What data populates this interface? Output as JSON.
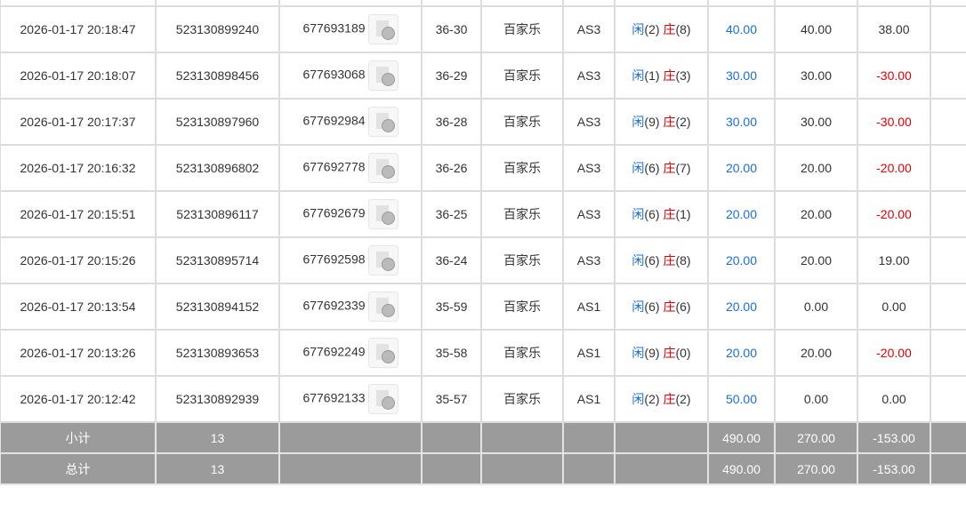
{
  "rows": [
    {
      "time": "2026-01-17 20:18:47",
      "bet_id": "523130899240",
      "game_id": "677693189",
      "round": "36-30",
      "game": "百家乐",
      "table": "AS3",
      "xian": "闲",
      "xian_n": "(2)",
      "zhuang": "庄",
      "zhuang_n": "(8)",
      "bet": "40.00",
      "valid": "40.00",
      "win": "38.00",
      "neg": false
    },
    {
      "time": "2026-01-17 20:18:07",
      "bet_id": "523130898456",
      "game_id": "677693068",
      "round": "36-29",
      "game": "百家乐",
      "table": "AS3",
      "xian": "闲",
      "xian_n": "(1)",
      "zhuang": "庄",
      "zhuang_n": "(3)",
      "bet": "30.00",
      "valid": "30.00",
      "win": "-30.00",
      "neg": true
    },
    {
      "time": "2026-01-17 20:17:37",
      "bet_id": "523130897960",
      "game_id": "677692984",
      "round": "36-28",
      "game": "百家乐",
      "table": "AS3",
      "xian": "闲",
      "xian_n": "(9)",
      "zhuang": "庄",
      "zhuang_n": "(2)",
      "bet": "30.00",
      "valid": "30.00",
      "win": "-30.00",
      "neg": true
    },
    {
      "time": "2026-01-17 20:16:32",
      "bet_id": "523130896802",
      "game_id": "677692778",
      "round": "36-26",
      "game": "百家乐",
      "table": "AS3",
      "xian": "闲",
      "xian_n": "(6)",
      "zhuang": "庄",
      "zhuang_n": "(7)",
      "bet": "20.00",
      "valid": "20.00",
      "win": "-20.00",
      "neg": true
    },
    {
      "time": "2026-01-17 20:15:51",
      "bet_id": "523130896117",
      "game_id": "677692679",
      "round": "36-25",
      "game": "百家乐",
      "table": "AS3",
      "xian": "闲",
      "xian_n": "(6)",
      "zhuang": "庄",
      "zhuang_n": "(1)",
      "bet": "20.00",
      "valid": "20.00",
      "win": "-20.00",
      "neg": true
    },
    {
      "time": "2026-01-17 20:15:26",
      "bet_id": "523130895714",
      "game_id": "677692598",
      "round": "36-24",
      "game": "百家乐",
      "table": "AS3",
      "xian": "闲",
      "xian_n": "(6)",
      "zhuang": "庄",
      "zhuang_n": "(8)",
      "bet": "20.00",
      "valid": "20.00",
      "win": "19.00",
      "neg": false
    },
    {
      "time": "2026-01-17 20:13:54",
      "bet_id": "523130894152",
      "game_id": "677692339",
      "round": "35-59",
      "game": "百家乐",
      "table": "AS1",
      "xian": "闲",
      "xian_n": "(6)",
      "zhuang": "庄",
      "zhuang_n": "(6)",
      "bet": "20.00",
      "valid": "0.00",
      "win": "0.00",
      "neg": false
    },
    {
      "time": "2026-01-17 20:13:26",
      "bet_id": "523130893653",
      "game_id": "677692249",
      "round": "35-58",
      "game": "百家乐",
      "table": "AS1",
      "xian": "闲",
      "xian_n": "(9)",
      "zhuang": "庄",
      "zhuang_n": "(0)",
      "bet": "20.00",
      "valid": "20.00",
      "win": "-20.00",
      "neg": true
    },
    {
      "time": "2026-01-17 20:12:42",
      "bet_id": "523130892939",
      "game_id": "677692133",
      "round": "35-57",
      "game": "百家乐",
      "table": "AS1",
      "xian": "闲",
      "xian_n": "(2)",
      "zhuang": "庄",
      "zhuang_n": "(2)",
      "bet": "50.00",
      "valid": "0.00",
      "win": "0.00",
      "neg": false
    }
  ],
  "subtotal": {
    "label": "小计",
    "count": "13",
    "bet": "490.00",
    "valid": "270.00",
    "win": "-153.00"
  },
  "total": {
    "label": "总计",
    "count": "13",
    "bet": "490.00",
    "valid": "270.00",
    "win": "-153.00"
  },
  "icon": "video-replay-icon",
  "colors": {
    "positive_bet": "#1a6fd6",
    "negative": "#e00000",
    "summary_bg": "#9b9b9b"
  }
}
